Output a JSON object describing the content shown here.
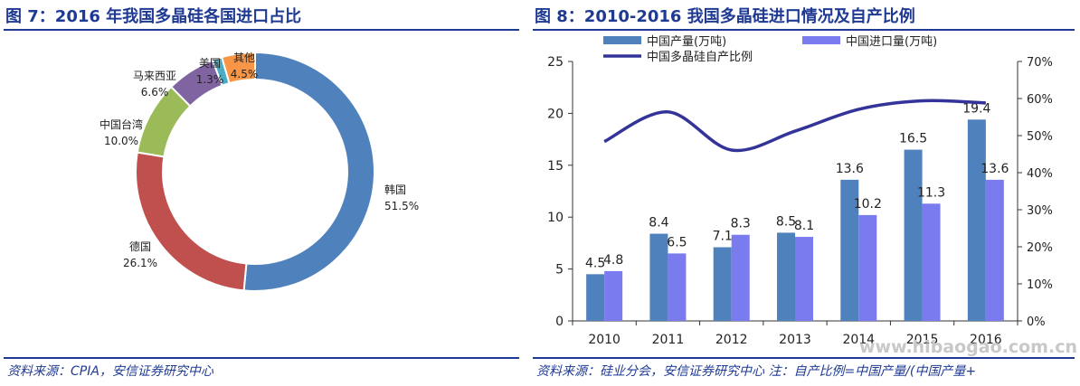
{
  "fig7": {
    "title": "图 7：2016 年我国多晶硅各国进口占比",
    "source": "资料来源：CPIA，安信证券研究中心"
  },
  "fig8": {
    "title": "图 8：2010-2016 我国多晶硅进口情况及自产比例",
    "source": "资料来源：硅业分会，安信证券研究中心 注：自产比例=中国产量/(中国产量+"
  },
  "watermark": "www.hibaogao.com.cn",
  "chart_data": [
    {
      "type": "pie",
      "donut": true,
      "title": "图 7：2016 年我国多晶硅各国进口占比",
      "slices": [
        {
          "label": "韩国",
          "value": 51.5,
          "display": "51.5%",
          "color": "#4f81bd"
        },
        {
          "label": "德国",
          "value": 26.1,
          "display": "26.1%",
          "color": "#c0504d"
        },
        {
          "label": "中国台湾",
          "value": 10.0,
          "display": "10.0%",
          "color": "#9bbb59"
        },
        {
          "label": "马来西亚",
          "value": 6.6,
          "display": "6.6%",
          "color": "#8064a2"
        },
        {
          "label": "美国",
          "value": 1.3,
          "display": "1.3%",
          "color": "#4bacc6"
        },
        {
          "label": "其他",
          "value": 4.5,
          "display": "4.5%",
          "color": "#f79646"
        }
      ]
    },
    {
      "type": "bar",
      "title": "图 8：2010-2016 我国多晶硅进口情况及自产比例",
      "categories": [
        "2010",
        "2011",
        "2012",
        "2013",
        "2014",
        "2015",
        "2016"
      ],
      "series": [
        {
          "name": "中国产量(万吨)",
          "kind": "bar",
          "axis": "left",
          "color": "#4f81bd",
          "values": [
            4.5,
            8.4,
            7.1,
            8.5,
            13.6,
            16.5,
            19.4
          ],
          "labels": [
            "4.5",
            "8.4",
            "7.1",
            "8.5",
            "13.6",
            "16.5",
            "19.4"
          ]
        },
        {
          "name": "中国进口量(万吨)",
          "kind": "bar",
          "axis": "left",
          "color": "#7b7bf0",
          "values": [
            4.8,
            6.5,
            8.3,
            8.1,
            10.2,
            11.3,
            13.6
          ],
          "labels": [
            "4.8",
            "6.5",
            "8.3",
            "8.1",
            "10.2",
            "11.3",
            "13.6"
          ]
        },
        {
          "name": "中国多晶硅自产比例",
          "kind": "line",
          "axis": "right",
          "color": "#333399",
          "values": [
            48.4,
            56.4,
            46.1,
            51.2,
            57.1,
            59.4,
            58.8
          ]
        }
      ],
      "ylim": [
        0,
        25
      ],
      "yticks": [
        "0",
        "5",
        "10",
        "15",
        "20",
        "25"
      ],
      "y2lim": [
        0,
        70
      ],
      "y2ticks": [
        "0%",
        "10%",
        "20%",
        "30%",
        "40%",
        "50%",
        "60%",
        "70%"
      ],
      "grid": false,
      "legend": "top"
    }
  ]
}
